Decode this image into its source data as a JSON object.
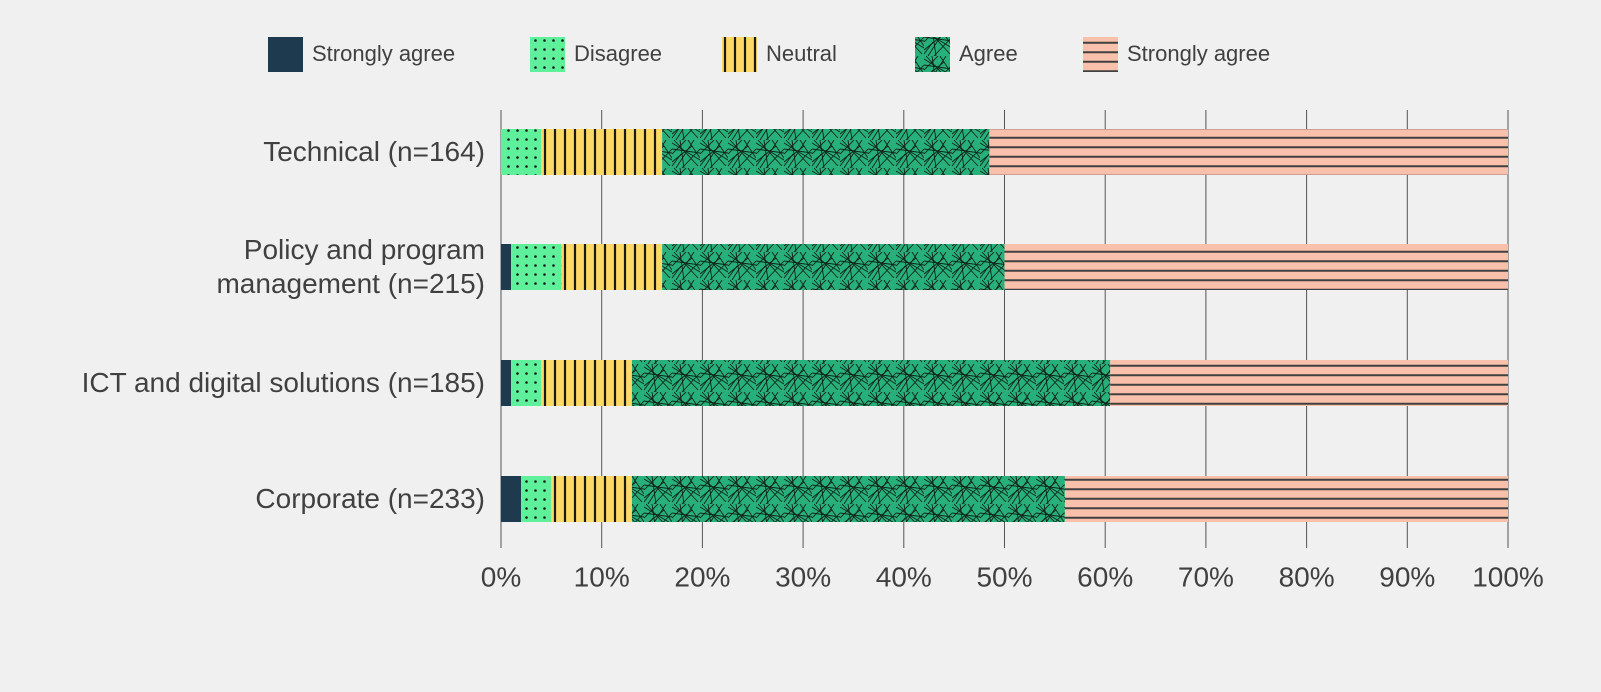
{
  "chart_data": {
    "type": "stacked_barh",
    "categories": [
      "Technical (n=164)",
      "Policy and program\nmanagement (n=215)",
      "ICT and digital solutions (n=185)",
      "Corporate (n=233)"
    ],
    "series": [
      {
        "name": "Strongly agree",
        "color": "#1d3a4f",
        "pattern": "solid",
        "values": [
          0,
          1,
          1,
          2
        ]
      },
      {
        "name": "Disagree",
        "color": "#5ef09a",
        "pattern": "dots",
        "values": [
          4,
          5,
          3,
          3
        ]
      },
      {
        "name": "Neutral",
        "color": "#ffd966",
        "pattern": "vertical",
        "values": [
          12,
          10,
          9,
          8
        ]
      },
      {
        "name": "Agree",
        "color": "#27b07a",
        "pattern": "crosshatch",
        "values": [
          32.5,
          34,
          47.5,
          43
        ]
      },
      {
        "name": "Strongly agree",
        "color": "#f9c0ac",
        "pattern": "horizontal",
        "values": [
          51.5,
          50,
          39.5,
          44
        ]
      }
    ],
    "xlim": [
      0,
      100
    ],
    "xticks": [
      {
        "value": 0,
        "label": "0%"
      },
      {
        "value": 10,
        "label": "10%"
      },
      {
        "value": 20,
        "label": "20%"
      },
      {
        "value": 30,
        "label": "30%"
      },
      {
        "value": 40,
        "label": "40%"
      },
      {
        "value": 50,
        "label": "50%"
      },
      {
        "value": 60,
        "label": "60%"
      },
      {
        "value": 70,
        "label": "70%"
      },
      {
        "value": 80,
        "label": "80%"
      },
      {
        "value": 90,
        "label": "90%"
      },
      {
        "value": 100,
        "label": "100%"
      }
    ],
    "grid": true,
    "legend": "top"
  }
}
